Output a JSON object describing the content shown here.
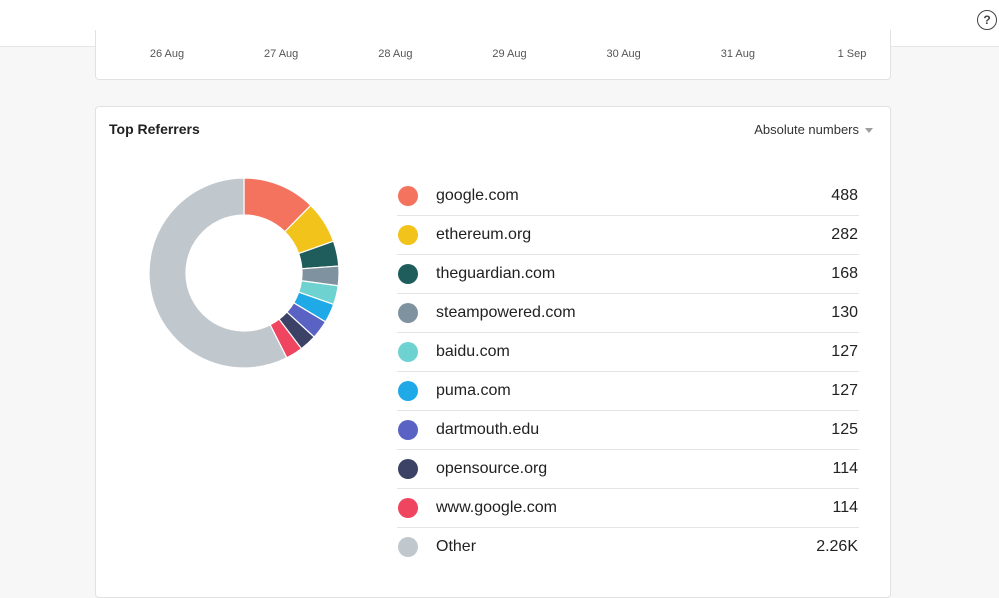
{
  "help": {
    "icon": "help-circle-icon",
    "glyph": "?"
  },
  "timeline": {
    "x_ticks": [
      "26 Aug",
      "27 Aug",
      "28 Aug",
      "29 Aug",
      "30 Aug",
      "31 Aug",
      "1 Sep"
    ]
  },
  "referrers": {
    "title": "Top Referrers",
    "mode_label": "Absolute numbers",
    "mode_icon": "caret-down-icon",
    "items": [
      {
        "name": "google.com",
        "count": "488",
        "value": 488,
        "color": "#f4735e"
      },
      {
        "name": "ethereum.org",
        "count": "282",
        "value": 282,
        "color": "#f2c31b"
      },
      {
        "name": "theguardian.com",
        "count": "168",
        "value": 168,
        "color": "#1f5c5c"
      },
      {
        "name": "steampowered.com",
        "count": "130",
        "value": 130,
        "color": "#7f929f"
      },
      {
        "name": "baidu.com",
        "count": "127",
        "value": 127,
        "color": "#6ed3d0"
      },
      {
        "name": "puma.com",
        "count": "127",
        "value": 127,
        "color": "#1fa9e6"
      },
      {
        "name": "dartmouth.edu",
        "count": "125",
        "value": 125,
        "color": "#5a63c4"
      },
      {
        "name": "opensource.org",
        "count": "114",
        "value": 114,
        "color": "#3c4166"
      },
      {
        "name": "www.google.com",
        "count": "114",
        "value": 114,
        "color": "#ef4560"
      },
      {
        "name": "Other",
        "count": "2.26K",
        "value": 2260,
        "color": "#c1c8cd"
      }
    ]
  },
  "chart_data": {
    "type": "pie",
    "categories": [
      "google.com",
      "ethereum.org",
      "theguardian.com",
      "steampowered.com",
      "baidu.com",
      "puma.com",
      "dartmouth.edu",
      "opensource.org",
      "www.google.com",
      "Other"
    ],
    "values": [
      488,
      282,
      168,
      130,
      127,
      127,
      125,
      114,
      114,
      2260
    ]
  }
}
